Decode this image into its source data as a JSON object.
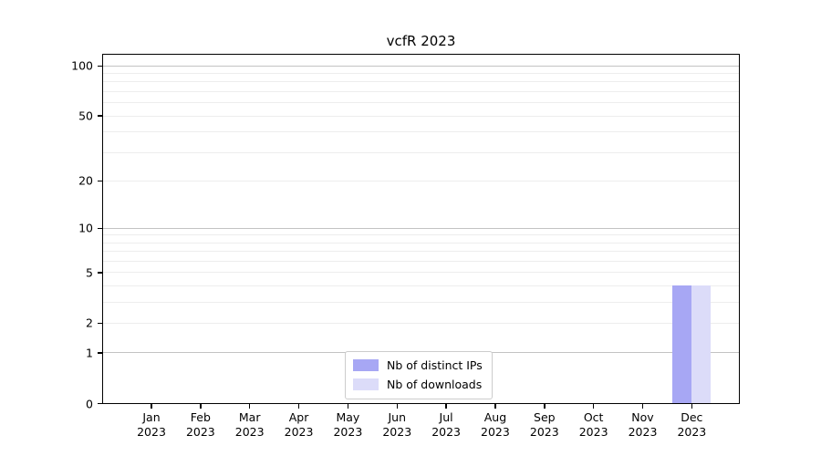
{
  "chart_data": {
    "type": "bar",
    "title": "vcfR 2023",
    "xlabel": "",
    "ylabel": "",
    "background": "#ffffff",
    "x_tick_labels": [
      [
        "Jan",
        "2023"
      ],
      [
        "Feb",
        "2023"
      ],
      [
        "Mar",
        "2023"
      ],
      [
        "Apr",
        "2023"
      ],
      [
        "May",
        "2023"
      ],
      [
        "Jun",
        "2023"
      ],
      [
        "Jul",
        "2023"
      ],
      [
        "Aug",
        "2023"
      ],
      [
        "Sep",
        "2023"
      ],
      [
        "Oct",
        "2023"
      ],
      [
        "Nov",
        "2023"
      ],
      [
        "Dec",
        "2023"
      ]
    ],
    "series": [
      {
        "name": "Nb of distinct IPs",
        "color": "#a7a7f4",
        "values": [
          0,
          0,
          0,
          0,
          0,
          0,
          0,
          0,
          0,
          0,
          0,
          4
        ]
      },
      {
        "name": "Nb of downloads",
        "color": "#dcdcf9",
        "values": [
          0,
          0,
          0,
          0,
          0,
          0,
          0,
          0,
          0,
          0,
          0,
          4
        ]
      }
    ],
    "y_axis": {
      "scale": "log1p",
      "ylim": [
        0,
        116
      ],
      "tick_labels": [
        "0",
        "1",
        "2",
        "5",
        "10",
        "20",
        "50",
        "100"
      ],
      "tick_values": [
        0,
        1,
        2,
        5,
        10,
        20,
        50,
        100
      ],
      "major_gridlines": [
        1,
        10,
        100
      ],
      "minor_gridlines": [
        2,
        3,
        4,
        5,
        6,
        7,
        8,
        9,
        20,
        30,
        40,
        50,
        60,
        70,
        80,
        90
      ]
    },
    "legend": {
      "position": "lower center",
      "entries": [
        "Nb of distinct IPs",
        "Nb of downloads"
      ]
    },
    "grid": true
  }
}
